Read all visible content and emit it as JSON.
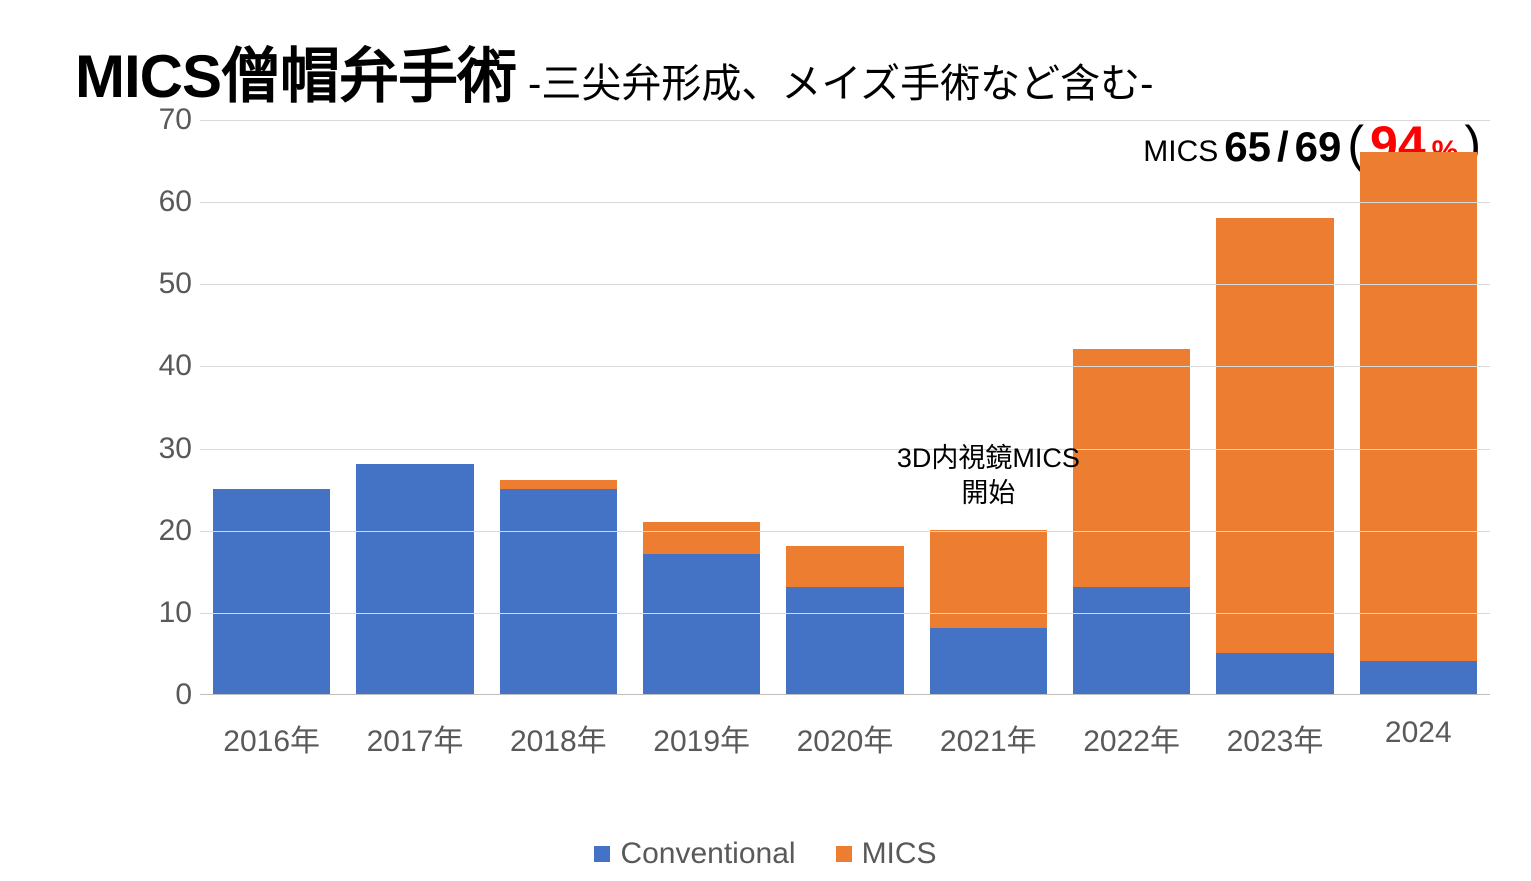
{
  "title": {
    "main": "MICS僧帽弁手術",
    "sub": "-三尖弁形成、メイズ手術など含む-"
  },
  "summary": {
    "label": "MICS",
    "numerator": "65",
    "denominator": "69",
    "open_paren": "(",
    "pct": "94",
    "pct_unit": "%",
    "close_paren": ")",
    "pct_color": "#ff0000"
  },
  "chart": {
    "type": "stacked-bar",
    "background_color": "#ffffff",
    "grid_color": "#d9d9d9",
    "axis_color": "#bfbfbf",
    "label_color": "#595959",
    "label_fontsize": 30,
    "ylim": [
      0,
      70
    ],
    "ytick_step": 10,
    "yticks": [
      0,
      10,
      20,
      30,
      40,
      50,
      60,
      70
    ],
    "categories": [
      "2016年",
      "2017年",
      "2018年",
      "2019年",
      "2020年",
      "2021年",
      "2022年",
      "2023年",
      "2024"
    ],
    "series": [
      {
        "name": "Conventional",
        "color": "#4472c4",
        "values": [
          25,
          28,
          25,
          17,
          13,
          8,
          13,
          5,
          4
        ]
      },
      {
        "name": "MICS",
        "color": "#ed7d31",
        "values": [
          0,
          0,
          1,
          4,
          5,
          12,
          29,
          53,
          62
        ]
      }
    ],
    "bar_width_pct": 82,
    "annotation": {
      "line1": "3D内視鏡MICS",
      "line2": "開始",
      "over_category_index": 5,
      "above_value": 21
    }
  },
  "legend": {
    "items": [
      {
        "label": "Conventional",
        "color": "#4472c4"
      },
      {
        "label": "MICS",
        "color": "#ed7d31"
      }
    ],
    "fontsize": 30
  }
}
